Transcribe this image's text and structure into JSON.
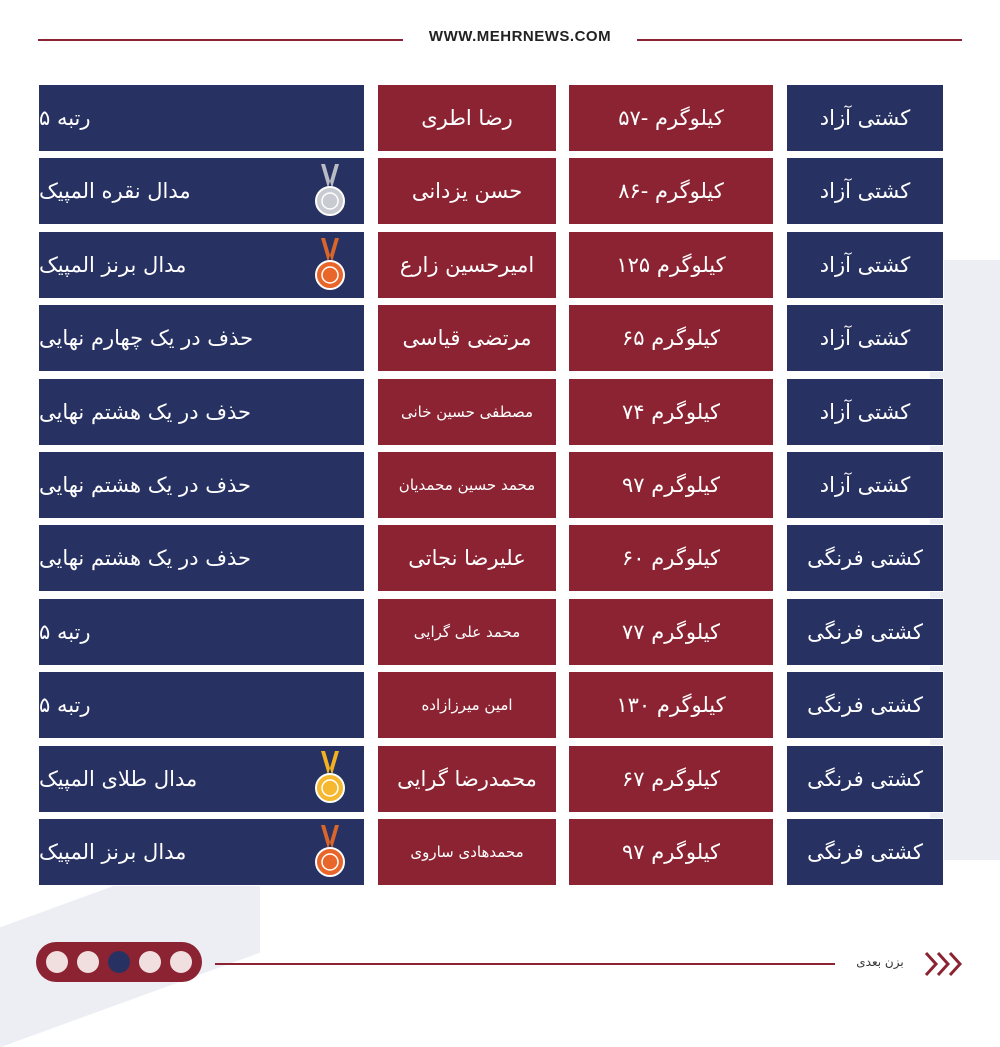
{
  "header": {
    "site": "WWW.MEHRNEWS.COM"
  },
  "table": {
    "rows": [
      [
        "کشتی آزاد",
        "کیلوگرم -۵۷",
        "رضا اطری",
        "رتبه ۵"
      ],
      [
        "کشتی آزاد",
        "کیلوگرم -۸۶",
        "حسن یزدانی",
        "مدال نقره المپیک"
      ],
      [
        "کشتی آزاد",
        "کیلوگرم ۱۲۵",
        "امیرحسین زارع",
        "مدال برنز المپیک"
      ],
      [
        "کشتی آزاد",
        "کیلوگرم ۶۵",
        "مرتضی قیاسی",
        "حذف در یک چهارم نهایی"
      ],
      [
        "کشتی آزاد",
        "کیلوگرم ۷۴",
        "مصطفی حسین خانی",
        "حذف در یک هشتم نهایی"
      ],
      [
        "کشتی آزاد",
        "کیلوگرم ۹۷",
        "محمد حسین محمدیان",
        "حذف در یک هشتم نهایی"
      ],
      [
        "کشتی فرنگی",
        "کیلوگرم ۶۰",
        "علیرضا نجاتی",
        "حذف در یک هشتم نهایی"
      ],
      [
        "کشتی فرنگی",
        "کیلوگرم ۷۷",
        "محمد علی گرایی",
        "رتبه ۵"
      ],
      [
        "کشتی فرنگی",
        "کیلوگرم ۱۳۰",
        "امین میرزازاده",
        "رتبه ۵"
      ],
      [
        "کشتی فرنگی",
        "کیلوگرم ۶۷",
        "محمدرضا گرایی",
        "مدال طلای المپیک"
      ],
      [
        "کشتی فرنگی",
        "کیلوگرم ۹۷",
        "محمدهادی ساروی",
        "مدال برنز المپیک"
      ]
    ]
  },
  "footer": {
    "next": "بزن بعدی"
  }
}
